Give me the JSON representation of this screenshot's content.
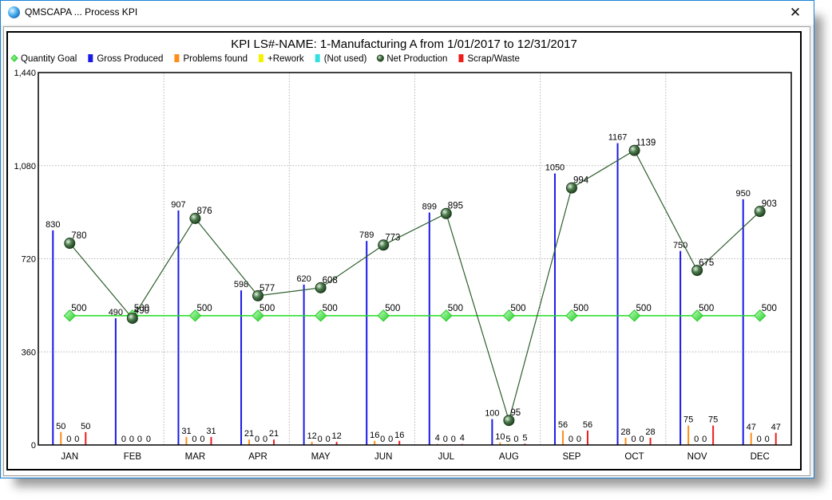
{
  "window": {
    "title": "QMSCAPA ... Process KPI",
    "close_label": "✕"
  },
  "chart_data": {
    "type": "bar",
    "title": "KPI LS#-NAME: 1-Manufacturing A from  1/01/2017 to 12/31/2017",
    "xlabel": "",
    "ylabel": "",
    "ylim": [
      0,
      1440
    ],
    "yticks": [
      "0",
      "360",
      "720",
      "1,080",
      "1,440"
    ],
    "grid": true,
    "legend_position": "top",
    "categories": [
      "JAN",
      "FEB",
      "MAR",
      "APR",
      "MAY",
      "JUN",
      "JUL",
      "AUG",
      "SEP",
      "OCT",
      "NOV",
      "DEC"
    ],
    "series": [
      {
        "name": "Quantity Goal",
        "type": "line",
        "color": "#22dd22",
        "marker": "diamond",
        "values": [
          500,
          500,
          500,
          500,
          500,
          500,
          500,
          500,
          500,
          500,
          500,
          500
        ]
      },
      {
        "name": "Gross Produced",
        "type": "bar",
        "color": "#1a1ae6",
        "values": [
          830,
          490,
          907,
          598,
          620,
          789,
          899,
          100,
          1050,
          1167,
          750,
          950
        ]
      },
      {
        "name": "Problems found",
        "type": "bar",
        "color": "#ff8c1a",
        "values": [
          50,
          0,
          31,
          21,
          12,
          16,
          4,
          10,
          56,
          28,
          75,
          47
        ]
      },
      {
        "name": "+Rework",
        "type": "bar",
        "color": "#f2f200",
        "values": [
          0,
          0,
          0,
          0,
          0,
          0,
          0,
          5,
          0,
          0,
          0,
          0
        ]
      },
      {
        "name": "(Not used)",
        "type": "bar",
        "color": "#33e0e0",
        "values": [
          0,
          0,
          0,
          0,
          0,
          0,
          0,
          0,
          0,
          0,
          0,
          0
        ]
      },
      {
        "name": "Net Production",
        "type": "line",
        "color": "#2e5e2e",
        "marker": "circle",
        "values": [
          780,
          490,
          876,
          577,
          608,
          773,
          895,
          95,
          994,
          1139,
          675,
          903
        ]
      },
      {
        "name": "Scrap/Waste",
        "type": "bar",
        "color": "#ee1c1c",
        "values": [
          50,
          0,
          31,
          21,
          12,
          16,
          4,
          5,
          56,
          28,
          75,
          47
        ]
      }
    ]
  }
}
